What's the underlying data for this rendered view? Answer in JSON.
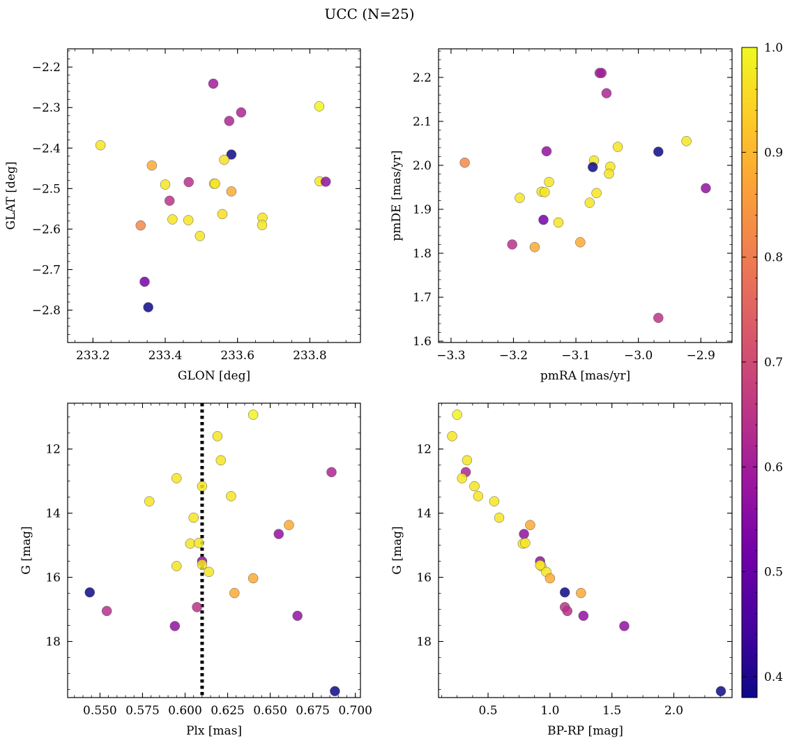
{
  "title": "UCC (N=25)",
  "chart_data": [
    {
      "type": "scatter",
      "xlabel": "GLON [deg]",
      "ylabel": "GLAT [deg]",
      "xlim": [
        233.13,
        233.94
      ],
      "ylim": [
        -2.88,
        -2.155
      ],
      "xticks": [
        233.2,
        233.4,
        233.6,
        233.8
      ],
      "xtick_labels": [
        "233.2",
        "233.4",
        "233.6",
        "233.8"
      ],
      "yticks": [
        -2.2,
        -2.3,
        -2.4,
        -2.5,
        -2.6,
        -2.7,
        -2.8
      ],
      "ytick_labels": [
        "−2.2",
        "−2.3",
        "−2.4",
        "−2.5",
        "−2.6",
        "−2.7",
        "−2.8"
      ],
      "points": [
        {
          "x": 233.533,
          "y": -2.241,
          "c": 0.6
        },
        {
          "x": 233.61,
          "y": -2.312,
          "c": 0.62
        },
        {
          "x": 233.577,
          "y": -2.333,
          "c": 0.62
        },
        {
          "x": 233.826,
          "y": -2.297,
          "c": 0.99
        },
        {
          "x": 233.221,
          "y": -2.393,
          "c": 0.97
        },
        {
          "x": 233.583,
          "y": -2.416,
          "c": 0.38
        },
        {
          "x": 233.363,
          "y": -2.443,
          "c": 0.88
        },
        {
          "x": 233.563,
          "y": -2.429,
          "c": 0.96
        },
        {
          "x": 233.4,
          "y": -2.49,
          "c": 0.97
        },
        {
          "x": 233.465,
          "y": -2.484,
          "c": 0.64
        },
        {
          "x": 233.535,
          "y": -2.488,
          "c": 0.97
        },
        {
          "x": 233.538,
          "y": -2.488,
          "c": 0.97
        },
        {
          "x": 233.583,
          "y": -2.507,
          "c": 0.88
        },
        {
          "x": 233.827,
          "y": -2.482,
          "c": 0.97
        },
        {
          "x": 233.844,
          "y": -2.483,
          "c": 0.57
        },
        {
          "x": 233.412,
          "y": -2.53,
          "c": 0.65
        },
        {
          "x": 233.42,
          "y": -2.576,
          "c": 0.97
        },
        {
          "x": 233.464,
          "y": -2.578,
          "c": 0.97
        },
        {
          "x": 233.558,
          "y": -2.563,
          "c": 0.96
        },
        {
          "x": 233.669,
          "y": -2.572,
          "c": 0.97
        },
        {
          "x": 233.668,
          "y": -2.59,
          "c": 0.97
        },
        {
          "x": 233.332,
          "y": -2.591,
          "c": 0.82
        },
        {
          "x": 233.496,
          "y": -2.617,
          "c": 0.97
        },
        {
          "x": 233.343,
          "y": -2.73,
          "c": 0.52
        },
        {
          "x": 233.353,
          "y": -2.793,
          "c": 0.38
        }
      ]
    },
    {
      "type": "scatter",
      "xlabel": "pmRA [mas/yr]",
      "ylabel": "pmDE [mas/yr]",
      "xlim": [
        -3.32,
        -2.85
      ],
      "ylim": [
        1.597,
        2.265
      ],
      "xticks": [
        -3.3,
        -3.2,
        -3.1,
        -3.0,
        -2.9
      ],
      "xtick_labels": [
        "−3.3",
        "−3.2",
        "−3.1",
        "−3.0",
        "−2.9"
      ],
      "yticks": [
        1.6,
        1.7,
        1.8,
        1.9,
        2.0,
        2.1,
        2.2
      ],
      "ytick_labels": [
        "1.6",
        "1.7",
        "1.8",
        "1.9",
        "2.0",
        "2.1",
        "2.2"
      ],
      "points": [
        {
          "x": -3.062,
          "y": 2.21,
          "c": 0.6
        },
        {
          "x": -3.051,
          "y": 2.164,
          "c": 0.62
        },
        {
          "x": -2.923,
          "y": 2.055,
          "c": 0.97
        },
        {
          "x": -3.033,
          "y": 2.042,
          "c": 0.97
        },
        {
          "x": -3.147,
          "y": 2.032,
          "c": 0.57
        },
        {
          "x": -2.968,
          "y": 2.031,
          "c": 0.38
        },
        {
          "x": -3.278,
          "y": 2.006,
          "c": 0.82
        },
        {
          "x": -3.071,
          "y": 2.011,
          "c": 0.97
        },
        {
          "x": -3.073,
          "y": 1.996,
          "c": 0.38
        },
        {
          "x": -3.045,
          "y": 1.997,
          "c": 0.97
        },
        {
          "x": -3.047,
          "y": 1.981,
          "c": 0.97
        },
        {
          "x": -3.143,
          "y": 1.962,
          "c": 0.97
        },
        {
          "x": -3.155,
          "y": 1.94,
          "c": 0.97
        },
        {
          "x": -3.15,
          "y": 1.939,
          "c": 0.97
        },
        {
          "x": -3.067,
          "y": 1.937,
          "c": 0.97
        },
        {
          "x": -2.892,
          "y": 1.948,
          "c": 0.57
        },
        {
          "x": -3.19,
          "y": 1.926,
          "c": 0.97
        },
        {
          "x": -3.078,
          "y": 1.915,
          "c": 0.97
        },
        {
          "x": -3.152,
          "y": 1.876,
          "c": 0.52
        },
        {
          "x": -3.128,
          "y": 1.87,
          "c": 0.97
        },
        {
          "x": -3.093,
          "y": 1.825,
          "c": 0.88
        },
        {
          "x": -3.202,
          "y": 1.82,
          "c": 0.64
        },
        {
          "x": -3.166,
          "y": 1.814,
          "c": 0.88
        },
        {
          "x": -2.968,
          "y": 1.653,
          "c": 0.65
        },
        {
          "x": -3.059,
          "y": 2.21,
          "c": 0.6
        }
      ]
    },
    {
      "type": "scatter",
      "xlabel": "Plx [mas]",
      "ylabel": "G [mag]",
      "xlim": [
        0.531,
        0.703
      ],
      "ylim": [
        19.75,
        10.57
      ],
      "y_inverted": true,
      "vline": {
        "x": 0.61,
        "style": "dotted"
      },
      "xticks": [
        0.55,
        0.575,
        0.6,
        0.625,
        0.65,
        0.675,
        0.7
      ],
      "xtick_labels": [
        "0.550",
        "0.575",
        "0.600",
        "0.625",
        "0.650",
        "0.675",
        "0.700"
      ],
      "yticks": [
        12,
        14,
        16,
        18
      ],
      "ytick_labels": [
        "12",
        "14",
        "16",
        "18"
      ],
      "points": [
        {
          "x": 0.64,
          "y": 10.93,
          "c": 0.99
        },
        {
          "x": 0.619,
          "y": 11.6,
          "c": 0.97
        },
        {
          "x": 0.621,
          "y": 12.35,
          "c": 0.97
        },
        {
          "x": 0.686,
          "y": 12.72,
          "c": 0.62
        },
        {
          "x": 0.595,
          "y": 12.91,
          "c": 0.97
        },
        {
          "x": 0.61,
          "y": 13.16,
          "c": 0.97
        },
        {
          "x": 0.627,
          "y": 13.47,
          "c": 0.97
        },
        {
          "x": 0.579,
          "y": 13.63,
          "c": 0.97
        },
        {
          "x": 0.605,
          "y": 14.14,
          "c": 0.97
        },
        {
          "x": 0.661,
          "y": 14.37,
          "c": 0.88
        },
        {
          "x": 0.655,
          "y": 14.65,
          "c": 0.57
        },
        {
          "x": 0.603,
          "y": 14.95,
          "c": 0.97
        },
        {
          "x": 0.608,
          "y": 14.93,
          "c": 0.97
        },
        {
          "x": 0.61,
          "y": 15.5,
          "c": 0.57
        },
        {
          "x": 0.61,
          "y": 15.6,
          "c": 0.97
        },
        {
          "x": 0.595,
          "y": 15.65,
          "c": 0.97
        },
        {
          "x": 0.614,
          "y": 15.83,
          "c": 0.97
        },
        {
          "x": 0.64,
          "y": 16.03,
          "c": 0.88
        },
        {
          "x": 0.544,
          "y": 16.47,
          "c": 0.38
        },
        {
          "x": 0.629,
          "y": 16.49,
          "c": 0.88
        },
        {
          "x": 0.607,
          "y": 16.93,
          "c": 0.65
        },
        {
          "x": 0.554,
          "y": 17.05,
          "c": 0.64
        },
        {
          "x": 0.666,
          "y": 17.2,
          "c": 0.57
        },
        {
          "x": 0.594,
          "y": 17.52,
          "c": 0.57
        },
        {
          "x": 0.688,
          "y": 19.55,
          "c": 0.38
        }
      ]
    },
    {
      "type": "scatter",
      "xlabel": "BP-RP [mag]",
      "ylabel": "G [mag]",
      "xlim": [
        0.1,
        2.47
      ],
      "ylim": [
        19.75,
        10.57
      ],
      "y_inverted": true,
      "xticks": [
        0.5,
        1.0,
        1.5,
        2.0
      ],
      "xtick_labels": [
        "0.5",
        "1.0",
        "1.5",
        "2.0"
      ],
      "yticks": [
        12,
        14,
        16,
        18
      ],
      "ytick_labels": [
        "12",
        "14",
        "16",
        "18"
      ],
      "points": [
        {
          "x": 0.25,
          "y": 10.93,
          "c": 0.99
        },
        {
          "x": 0.21,
          "y": 11.6,
          "c": 0.97
        },
        {
          "x": 0.33,
          "y": 12.35,
          "c": 0.97
        },
        {
          "x": 0.32,
          "y": 12.72,
          "c": 0.62
        },
        {
          "x": 0.29,
          "y": 12.91,
          "c": 0.97
        },
        {
          "x": 0.39,
          "y": 13.16,
          "c": 0.97
        },
        {
          "x": 0.42,
          "y": 13.47,
          "c": 0.97
        },
        {
          "x": 0.55,
          "y": 13.63,
          "c": 0.97
        },
        {
          "x": 0.59,
          "y": 14.14,
          "c": 0.97
        },
        {
          "x": 0.84,
          "y": 14.37,
          "c": 0.88
        },
        {
          "x": 0.79,
          "y": 14.65,
          "c": 0.57
        },
        {
          "x": 0.78,
          "y": 14.95,
          "c": 0.97
        },
        {
          "x": 0.8,
          "y": 14.93,
          "c": 0.97
        },
        {
          "x": 0.92,
          "y": 15.5,
          "c": 0.57
        },
        {
          "x": 0.93,
          "y": 15.65,
          "c": 0.97
        },
        {
          "x": 0.97,
          "y": 15.83,
          "c": 0.97
        },
        {
          "x": 1.0,
          "y": 16.03,
          "c": 0.88
        },
        {
          "x": 1.12,
          "y": 16.47,
          "c": 0.38
        },
        {
          "x": 1.25,
          "y": 16.49,
          "c": 0.88
        },
        {
          "x": 1.12,
          "y": 16.93,
          "c": 0.65
        },
        {
          "x": 1.14,
          "y": 17.05,
          "c": 0.64
        },
        {
          "x": 1.27,
          "y": 17.2,
          "c": 0.57
        },
        {
          "x": 1.6,
          "y": 17.52,
          "c": 0.57
        },
        {
          "x": 2.38,
          "y": 19.55,
          "c": 0.38
        },
        {
          "x": 0.92,
          "y": 15.62,
          "c": 0.97
        }
      ]
    }
  ],
  "colorbar": {
    "colormap": "plasma",
    "range": [
      0.38,
      1.0
    ],
    "ticks": [
      0.4,
      0.5,
      0.6,
      0.7,
      0.8,
      0.9,
      1.0
    ],
    "tick_labels": [
      "0.4",
      "0.5",
      "0.6",
      "0.7",
      "0.8",
      "0.9",
      "1.0"
    ]
  },
  "colors": {
    "plasma_stops": [
      "#0d0887",
      "#46039f",
      "#7201a8",
      "#9c179e",
      "#bd3786",
      "#d8576b",
      "#ed7953",
      "#fb9f3a",
      "#fdca26",
      "#f0f921"
    ],
    "vline": "#000000",
    "marker_edge": "#555555"
  }
}
